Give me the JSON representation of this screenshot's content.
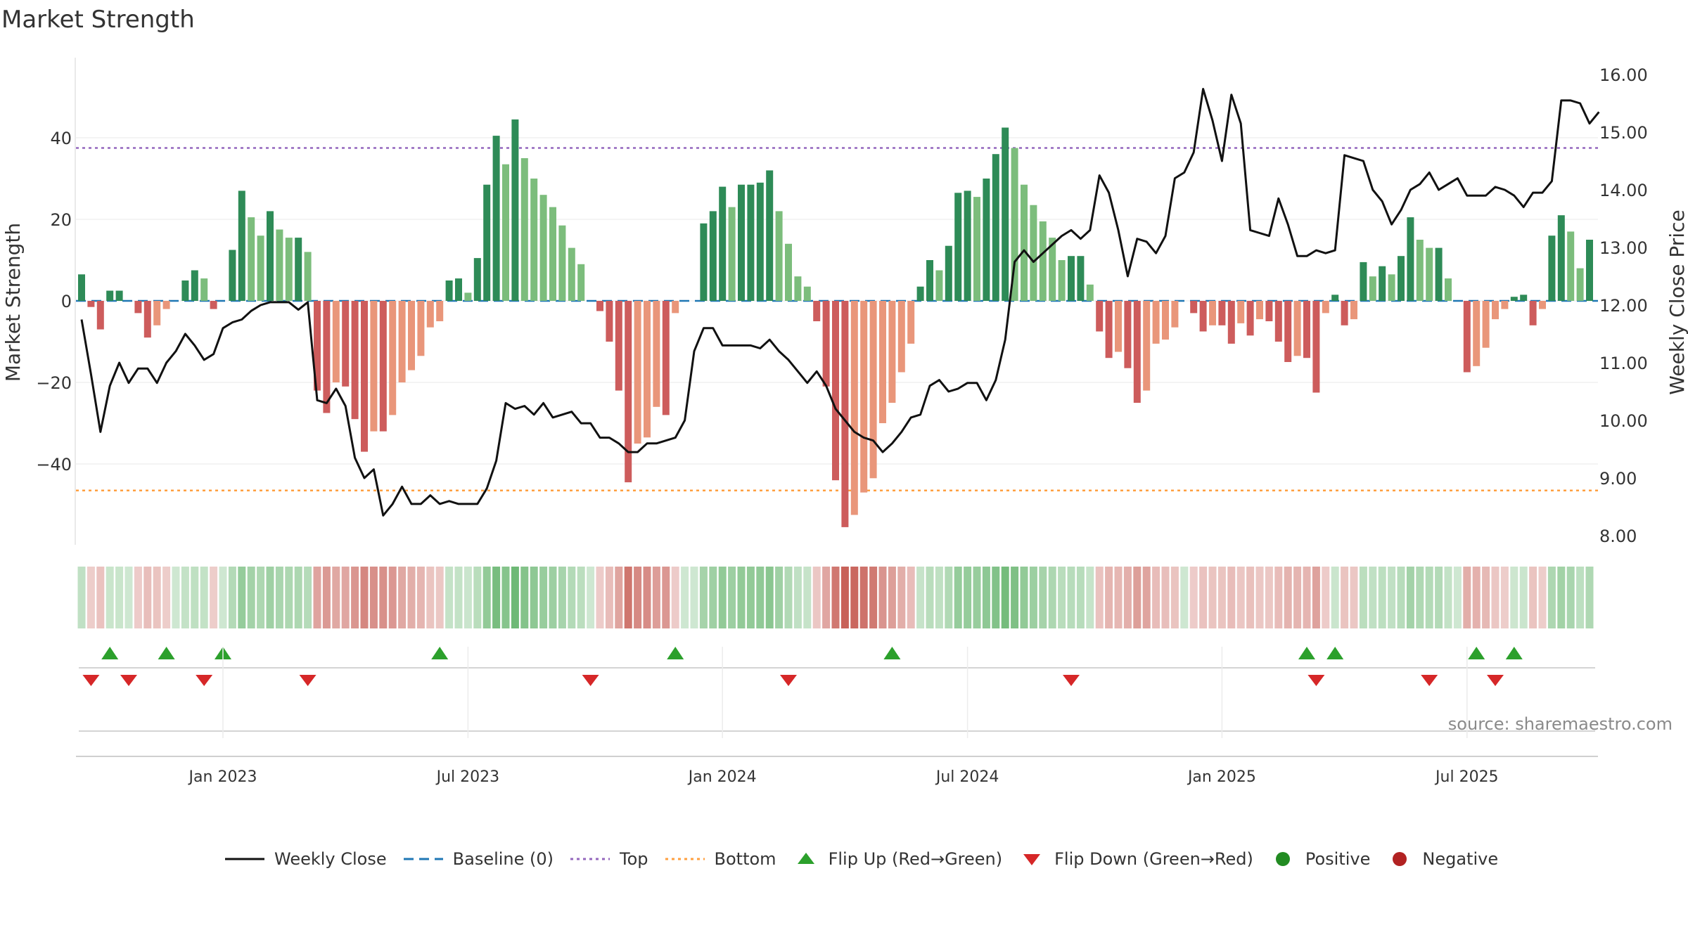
{
  "chart_data": {
    "type": "bar+line",
    "title": "Market Strength",
    "source": "source: sharemaestro.com",
    "y_left_label": "Market Strength",
    "y_right_label": "Weekly Close Price",
    "y_left_ticks": [
      "40",
      "20",
      "0",
      "−20",
      "−40"
    ],
    "y_left_tick_values": [
      40,
      20,
      0,
      -20,
      -40
    ],
    "y_right_ticks": [
      "16.00",
      "15.00",
      "14.00",
      "13.00",
      "12.00",
      "11.00",
      "10.00",
      "9.00",
      "8.00"
    ],
    "y_right_tick_values": [
      16,
      15,
      14,
      13,
      12,
      11,
      10,
      9,
      8
    ],
    "x_ticks": [
      "Jan 2023",
      "Jul 2023",
      "Jan 2024",
      "Jul 2024",
      "Jan 2025",
      "Jul 2025"
    ],
    "x_tick_week_index": [
      15,
      41,
      68,
      94,
      121,
      147
    ],
    "top_threshold": 37.5,
    "bottom_threshold": -46.5,
    "baseline": 0,
    "strength": [
      6.5,
      -1.5,
      -7,
      2.5,
      2.5,
      0,
      -3,
      -9,
      -6,
      -2,
      0,
      5,
      7.5,
      5.5,
      -2,
      0,
      12.5,
      27,
      20.5,
      16,
      22,
      17.5,
      15.5,
      15.5,
      12,
      -22,
      -27.5,
      -20,
      -21,
      -29,
      -37,
      -32,
      -32,
      -28,
      -20,
      -17,
      -13.5,
      -6.5,
      -5,
      5,
      5.5,
      2,
      10.5,
      28.5,
      40.5,
      33.5,
      44.5,
      35,
      30,
      26,
      23,
      18.5,
      13,
      9,
      0,
      -2.5,
      -10,
      -22,
      -44.5,
      -35,
      -33.5,
      -26,
      -28,
      -3,
      0,
      0,
      19,
      22,
      28,
      23,
      28.5,
      28.5,
      29,
      32,
      22,
      14,
      6,
      3.5,
      -5,
      -21,
      -44,
      -55.5,
      -52.5,
      -47,
      -43.5,
      -30,
      -25,
      -17.5,
      -10.5,
      3.5,
      10,
      7.5,
      13.5,
      26.5,
      27,
      25.5,
      30,
      36,
      42.5,
      37.5,
      28.5,
      23.5,
      19.5,
      15.5,
      10,
      11,
      11,
      4,
      -7.5,
      -14,
      -12.5,
      -16.5,
      -25,
      -22,
      -10.5,
      -9.5,
      -6.5,
      0,
      -3,
      -7.5,
      -6,
      -6,
      -10.5,
      -5.5,
      -8.5,
      -4.5,
      -5,
      -10,
      -15,
      -13.5,
      -14,
      -22.5,
      -3,
      1.5,
      -6,
      -4.5,
      9.5,
      6,
      8.5,
      6.5,
      11,
      20.5,
      15,
      13,
      13,
      5.5,
      0,
      -17.5,
      -16,
      -11.5,
      -4.5,
      -2,
      1,
      1.5,
      -6,
      -2,
      16,
      21,
      17,
      8,
      15
    ],
    "close": [
      11.75,
      10.8,
      9.8,
      10.6,
      11.0,
      10.65,
      10.9,
      10.9,
      10.65,
      11.0,
      11.2,
      11.5,
      11.3,
      11.05,
      11.15,
      11.6,
      11.7,
      11.75,
      11.9,
      12.0,
      12.05,
      12.05,
      12.05,
      11.92,
      12.05,
      10.35,
      10.3,
      10.55,
      10.25,
      9.35,
      9.0,
      9.15,
      8.35,
      8.55,
      8.85,
      8.55,
      8.55,
      8.7,
      8.55,
      8.6,
      8.55,
      8.55,
      8.55,
      8.82,
      9.3,
      10.3,
      10.2,
      10.25,
      10.1,
      10.3,
      10.05,
      10.1,
      10.15,
      9.95,
      9.95,
      9.7,
      9.7,
      9.6,
      9.45,
      9.45,
      9.6,
      9.6,
      9.65,
      9.7,
      10.0,
      11.2,
      11.6,
      11.6,
      11.3,
      11.3,
      11.3,
      11.3,
      11.25,
      11.4,
      11.2,
      11.05,
      10.85,
      10.65,
      10.85,
      10.6,
      10.2,
      10.0,
      9.8,
      9.7,
      9.65,
      9.45,
      9.6,
      9.8,
      10.05,
      10.1,
      10.6,
      10.7,
      10.5,
      10.55,
      10.65,
      10.65,
      10.35,
      10.7,
      11.4,
      12.75,
      12.95,
      12.75,
      12.9,
      13.05,
      13.2,
      13.3,
      13.15,
      13.3,
      14.25,
      13.95,
      13.3,
      12.5,
      13.15,
      13.1,
      12.9,
      13.2,
      14.2,
      14.3,
      14.65,
      15.75,
      15.2,
      14.5,
      15.65,
      15.15,
      13.3,
      13.25,
      13.2,
      13.85,
      13.4,
      12.85,
      12.85,
      12.95,
      12.9,
      12.95,
      14.6,
      14.55,
      14.5,
      14.0,
      13.8,
      13.4,
      13.65,
      14.0,
      14.1,
      14.3,
      14.0,
      14.1,
      14.2,
      13.9,
      13.9,
      13.9,
      14.05,
      14.0,
      13.9,
      13.7,
      13.95,
      13.95,
      14.15,
      15.55,
      15.55,
      15.5,
      15.15,
      15.35
    ],
    "flips_up": [
      3,
      9,
      15,
      38,
      63,
      86,
      130,
      133,
      148,
      152
    ],
    "flips_down": [
      1,
      5,
      13,
      24,
      54,
      75,
      105,
      131,
      143,
      150
    ],
    "legend": [
      "Weekly Close",
      "Baseline (0)",
      "Top",
      "Bottom",
      "Flip Up (Red→Green)",
      "Flip Down (Green→Red)",
      "Positive",
      "Negative"
    ]
  },
  "colors": {
    "strong_green": "#2e8b57",
    "light_green": "#7cbd7c",
    "strong_red": "#cd5c5c",
    "light_red": "#e9967a",
    "baseline": "#1f77b4",
    "top": "#9467bd",
    "bottom": "#ff9f3f",
    "flip_up": "#2ca02c",
    "flip_down": "#d62728",
    "positive": "#228b22",
    "negative": "#b22222"
  }
}
